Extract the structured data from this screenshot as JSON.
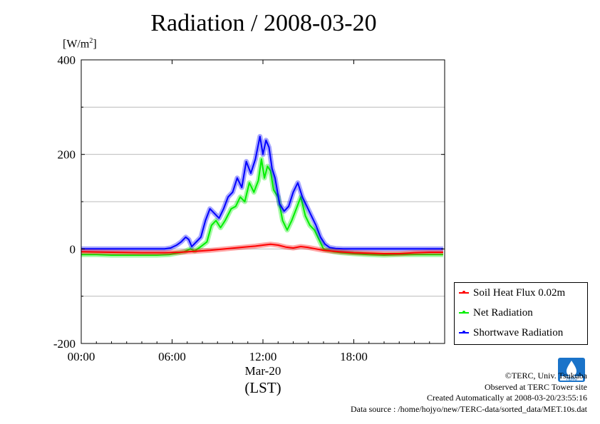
{
  "title": "Radiation / 2008-03-20",
  "unit": {
    "prefix": "[W/m",
    "sup": "2",
    "suffix": "]"
  },
  "chart_data": {
    "type": "line",
    "ylim": [
      -200,
      400
    ],
    "xlim": [
      0,
      24
    ],
    "y_ticks": [
      "400",
      "200",
      "0",
      "-200"
    ],
    "y_tick_values": [
      400,
      200,
      0,
      -200
    ],
    "x_ticks": [
      "00:00",
      "06:00",
      "12:00",
      "18:00"
    ],
    "x_tick_values": [
      0,
      6,
      12,
      18
    ],
    "x_date_label": "Mar-20",
    "xlabel": "(LST)",
    "grid": true,
    "legend_position": "lower-right outside",
    "series": [
      {
        "name": "Soil Heat Flux 0.02m",
        "color": "#ff0000",
        "x": [
          0,
          2,
          4,
          5.5,
          6.5,
          7.5,
          8.5,
          9.5,
          10.5,
          11.5,
          12.0,
          12.5,
          13.0,
          13.5,
          14.0,
          14.5,
          15.0,
          16.0,
          17.0,
          18.0,
          19.0,
          20.0,
          21.0,
          22.0,
          23.0,
          23.9
        ],
        "y": [
          -6,
          -7,
          -8,
          -8,
          -7,
          -5,
          -3,
          0,
          3,
          6,
          8,
          10,
          8,
          4,
          2,
          5,
          3,
          -3,
          -6,
          -8,
          -9,
          -10,
          -10,
          -8,
          -7,
          -7
        ]
      },
      {
        "name": "Net Radiation",
        "color": "#00ee00",
        "x": [
          0,
          1,
          2,
          3,
          4,
          5,
          5.8,
          6.3,
          6.8,
          7.2,
          7.5,
          7.9,
          8.3,
          8.6,
          8.9,
          9.2,
          9.5,
          9.9,
          10.2,
          10.5,
          10.8,
          11.1,
          11.4,
          11.7,
          11.9,
          12.1,
          12.3,
          12.5,
          12.7,
          13.0,
          13.3,
          13.6,
          13.9,
          14.2,
          14.5,
          14.8,
          15.1,
          15.4,
          15.7,
          16.0,
          16.3,
          16.7,
          17.2,
          18.0,
          19.0,
          20.0,
          21.0,
          22.0,
          23.0,
          23.9
        ],
        "y": [
          -12,
          -12,
          -13,
          -13,
          -13,
          -13,
          -12,
          -9,
          -6,
          0,
          -4,
          5,
          15,
          50,
          60,
          45,
          60,
          85,
          90,
          110,
          100,
          140,
          120,
          145,
          190,
          150,
          175,
          165,
          125,
          110,
          60,
          40,
          60,
          85,
          110,
          70,
          50,
          40,
          20,
          0,
          -3,
          -6,
          -8,
          -10,
          -12,
          -13,
          -12,
          -12,
          -12,
          -12
        ]
      },
      {
        "name": "Shortwave Radiation",
        "color": "#0000ff",
        "x": [
          0,
          2,
          4,
          5.5,
          5.9,
          6.3,
          6.6,
          6.9,
          7.1,
          7.3,
          7.6,
          7.9,
          8.2,
          8.5,
          8.8,
          9.1,
          9.4,
          9.7,
          10.0,
          10.3,
          10.6,
          10.9,
          11.2,
          11.5,
          11.8,
          12.0,
          12.2,
          12.4,
          12.6,
          12.8,
          13.1,
          13.4,
          13.7,
          14.0,
          14.3,
          14.6,
          14.9,
          15.2,
          15.5,
          15.8,
          16.1,
          16.4,
          16.8,
          17.3,
          18.0,
          20.0,
          22.0,
          23.9
        ],
        "y": [
          0,
          0,
          0,
          0,
          2,
          8,
          15,
          25,
          20,
          5,
          15,
          25,
          60,
          85,
          75,
          65,
          85,
          110,
          120,
          150,
          130,
          185,
          160,
          190,
          238,
          200,
          230,
          215,
          170,
          150,
          95,
          80,
          90,
          120,
          140,
          110,
          90,
          70,
          50,
          25,
          10,
          3,
          1,
          0,
          0,
          0,
          0,
          0
        ]
      }
    ]
  },
  "legend": [
    {
      "label": "Soil Heat Flux 0.02m",
      "color": "#ff0000"
    },
    {
      "label": "Net Radiation",
      "color": "#00ee00"
    },
    {
      "label": "Shortwave Radiation",
      "color": "#0000ff"
    }
  ],
  "credits": {
    "line1": "©TERC, Univ. Tsukuba",
    "line2": "Observed at TERC Tower site",
    "line3": "Created Automatically at 2008-03-20/23:55:16",
    "line4": "Data source : /home/hojyo/new/TERC-data/sorted_data/MET.10s.dat"
  },
  "logo": {
    "text": "TERC",
    "color": "#1a73c9"
  }
}
